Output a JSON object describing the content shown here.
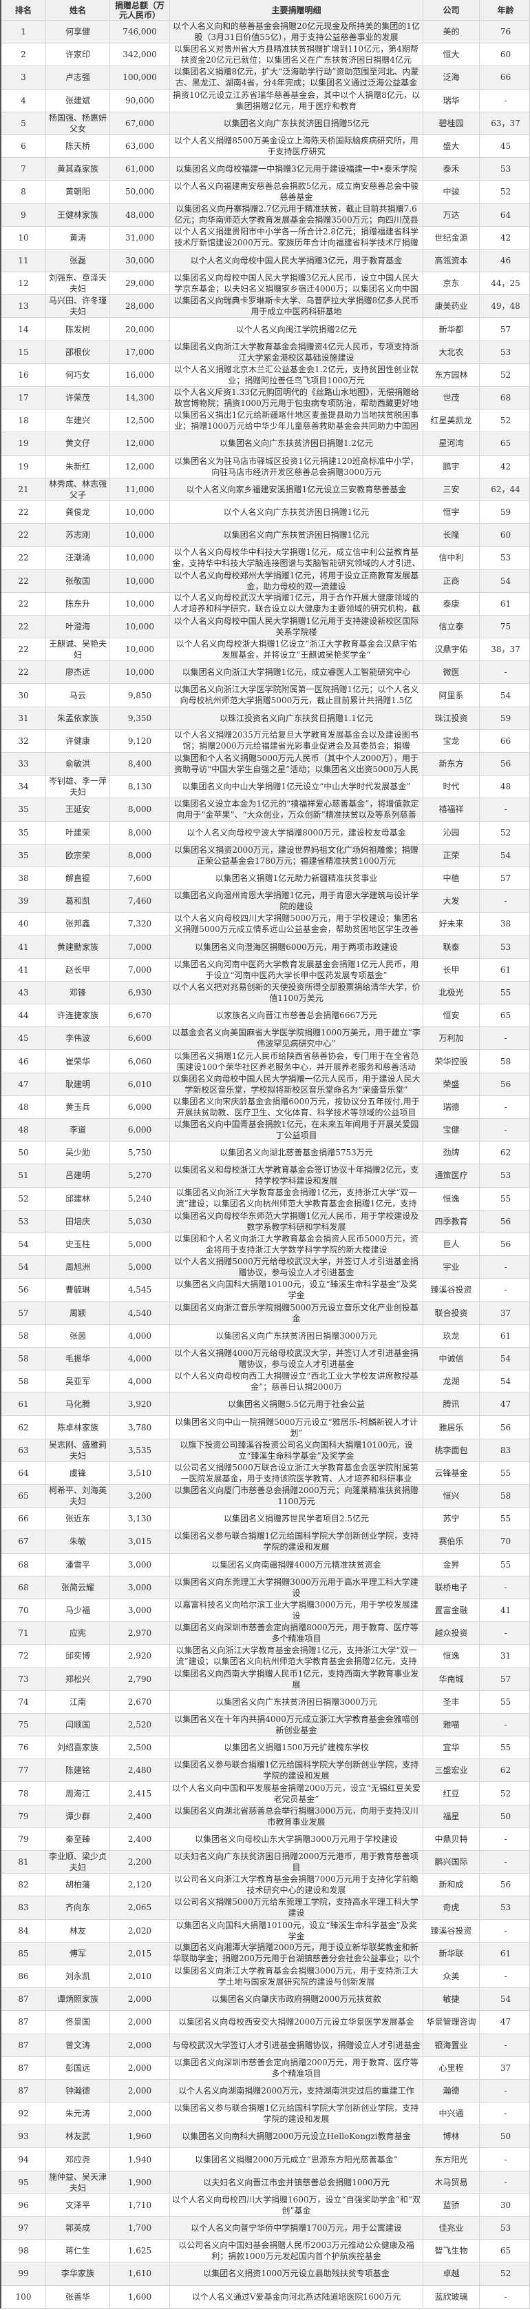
{
  "table": {
    "headers": [
      "排名",
      "姓名",
      "捐赠总额（万元人民币）",
      "主要捐赠明细",
      "公司",
      "年龄"
    ],
    "rows": [
      [
        "1",
        "何享健",
        "746,000",
        "以个人名义向和的慈善基金会捐赠20亿元现金及所持美的集团的1亿股（3月31日价值55亿），用于支持公益慈善事业的发展",
        "美的",
        "76"
      ],
      [
        "2",
        "许家印",
        "342,000",
        "以集团名义对贵州省大方县精准扶贫捐赠扩增到110亿元，第4期帮扶资金20亿元已就位；以集团名义在广东扶贫济困日捐赠4亿元",
        "恒大",
        "60"
      ],
      [
        "3",
        "卢志强",
        "100,000",
        "以集团名义捐赠8亿元，扩大“泛海助学行动”资助范围至河北、内蒙古、黑龙江、湖南4省，分4年完成；以集团名义通过泛海公益基金会再",
        "泛海",
        "66"
      ],
      [
        "4",
        "张建斌",
        "90,000",
        "捐资10亿元设立江苏省瑞华慈善基金会，其中以个人捐赠8亿元，以集团捐赠2亿元，用于医疗和教育",
        "瑞华",
        "-"
      ],
      [
        "5",
        "杨国强、杨惠妍父女",
        "67,000",
        "以集团名义向广东扶贫济困日捐赠5亿元",
        "碧桂园",
        "63，37"
      ],
      [
        "6",
        "陈天桥",
        "63,000",
        "以个人名义捐赠8500万美金设立上海陈天桥国际脑疾病研究所，用于支持医疗研究",
        "盛大",
        "45"
      ],
      [
        "7",
        "黄其森家族",
        "61,000",
        "以集团名义向母校福建一中捐赠3亿元用于建设福建一中•泰禾学院",
        "泰禾",
        "53"
      ],
      [
        "8",
        "黄朝阳",
        "50,000",
        "以个人名义向福建南安慈善总会捐款5亿元，成立南安慈善总会中骏慈善基金",
        "中骏",
        "52"
      ],
      [
        "9",
        "王健林家族",
        "48,000",
        "以集团名义向丹寨捐赠2.7亿元用于精准扶贫，截止目前共捐赠7.6亿元；向华南师范大学教育发展基金会捐赠3500万元；向四川茂县山体垮",
        "万达",
        "64"
      ],
      [
        "10",
        "黄涛",
        "31,000",
        "以个人名义捐建贵阳市中小学各一所合计2.8亿元；捐赠福建省科学技术厅新馆建设2000万元。家族历年合计向福建省科学技术厅捐赠4.4亿",
        "世纪金源",
        "42"
      ],
      [
        "11",
        "张磊",
        "30,000",
        "以个人名义向母校中国人民大学捐赠3亿元，用于教育基金",
        "高瓴资本",
        "46"
      ],
      [
        "12",
        "刘强东、章泽天夫妇",
        "29,000",
        "以集团名义向母校中国人民大学捐赠3亿元人民币，设立中国人民大学京东基金；以夫妇名义捐赠家乡宿迁4000万；以集团名义向中国传媒大",
        "京东",
        "44，25"
      ],
      [
        "13",
        "马兴田、许冬瑾夫妇",
        "28,000",
        "以集团名义向瑞典卡罗琳斯卡大学、乌普萨拉大学捐赠8亿多人民币用于成立中医药科研基地",
        "康美药业",
        "49，48"
      ],
      [
        "14",
        "陈发树",
        "20,000",
        "以个人名义向闽江学院捐赠2亿元",
        "新华都",
        "57"
      ],
      [
        "15",
        "邵根伙",
        "17,000",
        "以集团名义向浙江大学教育基金会捐赠资4亿元人民币，专项支持浙江大学紫金港校区基础设施建设",
        "大北农",
        "53"
      ],
      [
        "16",
        "何巧女",
        "16,000",
        "以个人名义捐赠北京木兰汇公益基金会1.2亿元，支持贫困性创业就业；捐赠阿拉善任鸟飞项目1000万元",
        "东方园林",
        "52"
      ],
      [
        "17",
        "许荣茂",
        "14,300",
        "以个人名义斥资1.33亿元购回明代的《丝路山水地图》，无偿捐赠给故宫博物院；捐资1000万元用于包虫病专项防治，帮助西藏更好地建立包",
        "世茂",
        "68"
      ],
      [
        "18",
        "车建兴",
        "12,500",
        "以集团名义捐出1亿元给新疆喀什地区麦盖提县助力当地扶贫脱困事业；捐赠1000万元给中华少年儿童慈善救助基金会共同助力中国困境儿",
        "红星美凯龙",
        "52"
      ],
      [
        "19",
        "黄文仔",
        "12,000",
        "以集团名义向广东扶贫济困日捐赠1.2亿元",
        "星河湾",
        "65"
      ],
      [
        "19",
        "朱新红",
        "12,000",
        "以集团名义为驻马店市驿城区投资1亿元捐建120班高标准中小学，向驻马店市经济开发区慈善总会捐赠3000万元",
        "鹏宇",
        "42"
      ],
      [
        "21",
        "林秀成、林志强父子",
        "11,000",
        "以个人名义向家乡福建安溪捐赠1亿元设立三安教育慈善基金",
        "三安",
        "62，44"
      ],
      [
        "22",
        "龚俊龙",
        "10,000",
        "以个人名义向广东扶贫济困日捐赠1亿元",
        "恒宇",
        "59"
      ],
      [
        "22",
        "苏志刚",
        "10,000",
        "以集团名义向广东扶贫济困日捐赠1亿元",
        "长隆",
        "60"
      ],
      [
        "22",
        "汪潮涌",
        "10,000",
        "以个人名义向母校华中科技大学捐赠1亿元，成立信中利公益教育基金，支持华中科技大学脑连接图谱与类脑智能研究领域的人才引进、创",
        "信中利",
        "53"
      ],
      [
        "22",
        "张敬国",
        "10,000",
        "以个人名义向母校郑州大学捐赠1亿元，将用于设立正商教育发展基金，助力母校的双一流建设",
        "正商",
        "54"
      ],
      [
        "22",
        "陈东升",
        "10,000",
        "以个人名义向母校武汉大学捐赠1亿元，用于合作开展大健康领域的人才培养和科学研究，联合设立以大健康为主要领域的研究机构，截止目",
        "泰康",
        "61"
      ],
      [
        "22",
        "叶澄海",
        "10,000",
        "以个人名义向母校中国人民大学捐赠1亿元用于支持建设新校区国际关系学院楼",
        "信立泰",
        "75"
      ],
      [
        "22",
        "王麒诚、吴艳夫妇",
        "10,000",
        "以个人名义向母校浙大捐赠1亿设立“浙江大学教育基金会汉鼎宇佑发展基金，并将设立“王麒诚吴艳奖学金“",
        "汉鼎宇佑",
        "38，37"
      ],
      [
        "22",
        "廖杰远",
        "10,000",
        "以集团名义向浙江大学捐赠1亿元，成立睿医人工智能研究中心",
        "微医",
        "-"
      ],
      [
        "30",
        "马云",
        "9,850",
        "以集团名义向浙江大学医学院附属第一医院捐赠1亿元；以个人名义向母校杭州师范大学捐赠5000万元，截止目前累计共捐赠1.5亿元；以个",
        "阿里系",
        "54"
      ],
      [
        "31",
        "朱孟依家族",
        "9,350",
        "以珠江投资名义向广东扶贫日捐赠1.1亿元",
        "珠江投资",
        "59"
      ],
      [
        "32",
        "许健康",
        "9,120",
        "以个人名义捐赠2035万元给复旦大学教育发展基金会以及建设图书馆；捐赠2000万元给福建省光彩事业促进会及其委员会；捐赠1100万给泉州",
        "宝龙",
        "66"
      ],
      [
        "33",
        "俞敏洪",
        "8,400",
        "以集团和个人名义捐赠5000万元人民币（其中个人2000万），用于资助寻访“中国大学生自强之星”活动；以集团名义出资5000万人民币帮助",
        "新东方",
        "56"
      ],
      [
        "34",
        "岑钊雄、李一萍夫妇",
        "8,130",
        "以集团名义向中山大学捐赠1亿元设立“中山大学时代发展基金”",
        "时代",
        "48"
      ],
      [
        "35",
        "王延安",
        "8,000",
        "以集团名义设立本金为1亿元的“禧福祥爱心慈善基金”，将增值款定向用于“金苹果”、“大众创业，万众创新”精准扶贫以及等系列慈善",
        "禧福祥",
        "-"
      ],
      [
        "35",
        "叶建荣",
        "8,000",
        "以个人名义向母校宁波大学捐赠8000万元，建设校友母基金",
        "沁园",
        "52"
      ],
      [
        "35",
        "欧宗荣",
        "8,000",
        "以集团名义捐资2000万元，建设世界妈祖文化广场妈祖雕像；捐赠正荣公益基金会1780万元；福建省精准扶贫1000万元",
        "正荣",
        "54"
      ],
      [
        "38",
        "解直锟",
        "7,600",
        "以集团名义捐赠1亿元助力新疆精准扶贫事业",
        "中植",
        "57"
      ],
      [
        "39",
        "葛和凯",
        "7,460",
        "以集团名义向温州肯恩大学捐赠1亿元，用于肯恩大学建筑与设计学院的建设",
        "大发",
        "-"
      ],
      [
        "40",
        "张邦鑫",
        "7,320",
        "以个人名义向母校四川大学捐赠5000万元，用于学校建设；集团名义捐赠5000万元成立情系远山公益基金会，帮助贫困地区学生改善学习环",
        "好未来",
        "38"
      ],
      [
        "41",
        "黄建勳家族",
        "7,000",
        "以集团名义向澄海区捐赠6000万元，用于两项市政建设",
        "联泰",
        "53"
      ],
      [
        "41",
        "赵长甲",
        "7,000",
        "以集团名义向河南中医药大学教育发展基金会捐赠1亿元人民币，用于设立“河南中医药大学长甲中医药发展专项基金”",
        "长甲",
        "61"
      ],
      [
        "43",
        "邓锋",
        "6,930",
        "以个人名义把对兆易创新的天使投资所得全部股票捐给清华大学，价值1100万美元",
        "北极光",
        "55"
      ],
      [
        "44",
        "许连捷家族",
        "6,670",
        "以家族名义向晋江市慈善总会捐赠6667万元",
        "恒安",
        "65"
      ],
      [
        "45",
        "李伟波",
        "6,600",
        "以基金会名义向美国麻省大学医学院捐赠1000万美元，用于建立“李伟波罕见病研究中心”",
        "万利加",
        "-"
      ],
      [
        "46",
        "崔荣华",
        "6,060",
        "以集团名义捐赠1亿元人民币给陕西省慈善协会，专门用于在全省范围建设100个荣华社区养老服务中心，并开展养老服务和慈善活动",
        "荣华控股",
        "58"
      ],
      [
        "47",
        "耿建明",
        "6,010",
        "以集团名义向母校中国人民大学捐赠一亿元人民币，用于建设人民大学新校区音乐堂，学校拟将新校区音乐堂命名为“荣盛音乐堂”",
        "荣盛",
        "56"
      ],
      [
        "48",
        "黄玉兵",
        "6,000",
        "以集团名义向宋庆龄基金会捐赠6000万元，按协议分五年拨付,用于开展扶贫助教、医疗卫生、文化体育、科学技术等领域的公益项目",
        "瑞德",
        "-"
      ],
      [
        "48",
        "李道",
        "6,000",
        "以集团名义向中国青基会捐款1亿元，在未来五年间用于开展关爱园丁公益项目",
        "宝健",
        "-"
      ],
      [
        "50",
        "吴少勋",
        "5,750",
        "以集团名义向湖北慈善基金捐赠5753万元",
        "劲牌",
        "62"
      ],
      [
        "51",
        "吕建明",
        "5,270",
        "以集团名义和母校浙江大学教育基金会签订协议十年捐赠2亿元，支持学校学科建设和发展",
        "通策医疗",
        "53"
      ],
      [
        "52",
        "邱建林",
        "5,240",
        "以集团名义向浙江大学教育基金会捐赠1亿元，支持浙江大学“双一流”建设；以集团名义向杭州师范大学教育基金会捐赠1亿元，支持该校",
        "恒逸",
        "55"
      ],
      [
        "53",
        "田培庆",
        "5,030",
        "以集团名义向母校华东师范大学捐赠1亿元人民币，用于学校建设及数学系教学科研和学科发展",
        "四季教育",
        "56"
      ],
      [
        "54",
        "史玉柱",
        "5,000",
        "以集团和个人名义向浙江大学教育基金会捐资人民币5000万元，资金将用于支持浙江大学数学科学学院的新大楼建设",
        "巨人",
        "56"
      ],
      [
        "54",
        "周旭洲",
        "5,000",
        "以个人名义捐赠5000万元给母校武汉大学，并签订人才引进基金捐赠协议，参与设立人才引进基金",
        "宇业",
        "-"
      ],
      [
        "56",
        "曹毓琳",
        "4,545",
        "以集团名义向国科大捐赠10100元，设立“臻溪生命科学基金”及奖学金",
        "臻溪谷投资",
        "-"
      ],
      [
        "57",
        "周颖",
        "4,540",
        "以集团名义向浙江音乐学院捐赠5000万元设立音乐文化产业创投基金",
        "联合投资",
        "37"
      ],
      [
        "58",
        "张茵",
        "4,000",
        "以集团名义向广东扶贫济困日捐赠3000万元",
        "玖龙",
        "61"
      ],
      [
        "58",
        "毛振华",
        "4,000",
        "以个人名义捐赠4000万元给母校武汉大学，并签订人才引进基金捐赠协议，参与设立人才引进基金",
        "中诚信",
        "54"
      ],
      [
        "58",
        "吴亚军",
        "4,000",
        "以个人名义向母校向西工大捐赠设立“西北工业大学校友讲席教授基金”；慈善日认捐2000万",
        "龙湖",
        "54"
      ],
      [
        "61",
        "马化腾",
        "3,920",
        "以集团名义捐赠5.5亿元用于社会公益",
        "腾讯",
        "47"
      ],
      [
        "62",
        "陈卓林家族",
        "3,780",
        "以集团名义向中山一院捐赠5000万元设立“雅居乐-柯麟新锐人才计划”",
        "雅居乐",
        "56"
      ],
      [
        "63",
        "吴志刚、盛雅莉夫妇",
        "3,535",
        "以旗下投资公司臻溪谷投资公司名义向国科大捐赠10100元，设立“臻溪生命科学基金”及奖学金",
        "桃李面包",
        "83"
      ],
      [
        "64",
        "虞锋",
        "3,510",
        "以公司名义捐赠5000万联合设立浙江大学教育基金会医学院附属第一医院发展基金，用于支持该院医学教育、人才培养和科研事业",
        "云锋基金",
        "55"
      ],
      [
        "65",
        "柯希平、刘海英夫妇",
        "3,200",
        "以集团名义向厦门市慈善总会捐赠2000万元；向蓬莱精准扶贫捐赠1100万元",
        "恒兴",
        "58"
      ],
      [
        "66",
        "张近东",
        "3,130",
        "以集团名义捐赠苏世民学者项目2.5亿元",
        "苏宁",
        "55"
      ],
      [
        "67",
        "朱敏",
        "3,015",
        "以集团名义参与联合捐赠1亿元给国科学院大学创新创业学院，支持学院的建设和发展",
        "赛伯乐",
        "70"
      ],
      [
        "68",
        "潘雪平",
        "3,000",
        "以集团名义向南疆捐赠4000万元精准扶贫资金",
        "金昇",
        "55"
      ],
      [
        "68",
        "张简云耀",
        "3,000",
        "以集团名义向东莞理工大学捐赠3000万元用于高水平理工科大学建设",
        "联桥电子",
        "-"
      ],
      [
        "70",
        "马少福",
        "3,000",
        "以嘉富科技名义向哈尔滨工业大学捐赠3000万元，用于学校发展建设",
        "置富金融",
        "41"
      ],
      [
        "71",
        "应宪",
        "2,970",
        "以集团名义向深圳市慈善会定向捐赠8000万元，用于教育、医疗等多个精准项目",
        "越众投资",
        "-"
      ],
      [
        "72",
        "邱奕博",
        "2,920",
        "以集团名义向浙江大学教育基金会捐赠1亿元，支持浙江大学“双一流”建设；以集团名义向杭州师范大学教育基金会捐赠2亿元，支持该校",
        "恒逸",
        "31"
      ],
      [
        "73",
        "郑松兴",
        "2,790",
        "以集团名义向西南大学捐赠人民币1亿元，支持西南大学教育事业发展",
        "华南城",
        "57"
      ],
      [
        "74",
        "江南",
        "2,670",
        "以集团名义向广东扶贫济困日捐赠3000万元",
        "圣丰",
        "55"
      ],
      [
        "75",
        "闫顺国",
        "2,520",
        "以集团名义在十年内共捐4000万元成立浙江大学教育基金会雅喵创新创业基金",
        "雅喵",
        "-"
      ],
      [
        "76",
        "刘绍喜家族",
        "2,500",
        "以集团名义捐赠1500万元扩建槐东学校",
        "宜华",
        "55"
      ],
      [
        "77",
        "陈建铭",
        "2,480",
        "以集团名义参与联合捐赠1亿元给国科学院大学创新创业学院，支持学院的建设和发展",
        "三盛宏业",
        "62"
      ],
      [
        "78",
        "周海江",
        "2,415",
        "以个人名义向中国和平发展基金捐赠2000万元，设立“无锡红豆关爱老党员基金”",
        "红豆",
        "52"
      ],
      [
        "79",
        "谭少群",
        "2,400",
        "以集团名义向湖北省慈善总会举行捐赠3000万元，向用于支持汉川市教育事业发展",
        "福星",
        "50"
      ],
      [
        "79",
        "秦至臻",
        "2,400",
        "以集团名义向母校山东大学捐赠3000万元用于学校建设",
        "中鼎贝特",
        "-"
      ],
      [
        "81",
        "李业顺、梁少贞夫妇",
        "2,200",
        "以夫妇名义向广东扶贫济困日捐赠2000万元港币，用于教育慈善项目",
        "鹏兴国际",
        "-"
      ],
      [
        "82",
        "胡柏藩",
        "2,120",
        "以公司名义向浙江大学教育基金会捐赠7000万元用于支持化学前瞻技术研究中心的建设和发展",
        "新和成",
        "56"
      ],
      [
        "83",
        "齐向东",
        "2,065",
        "以公司名义捐赠5000万元给东莞理工学院，支持高水平理工科大学建设",
        "奇虎",
        "53"
      ],
      [
        "84",
        "林友",
        "2,020",
        "以集团名义向国科大捐赠10100元，设立“臻溪生命科学基金”及奖学金",
        "臻溪谷投资",
        "-"
      ],
      [
        "85",
        "傅军",
        "2,015",
        "以集团名义向湘潭大学捐赠2000万元，用于设立新华联奖教金和新华联助学金；捐赠200万元用于台湖镇慈善分会社会公益事业；以个人和集",
        "新华联",
        "61"
      ],
      [
        "86",
        "刘永凯",
        "2,010",
        "以集团名义向浙江大学教育基金会捐赠3000万元，用于支持浙江大学土地与国家发展研究院的建设与创新发展",
        "众美",
        "-"
      ],
      [
        "87",
        "谭炳照家族",
        "2,000",
        "以集团名义向肇庆市政府捐赠2000万元扶贫款",
        "敏捷",
        "54"
      ],
      [
        "87",
        "佟景国",
        "2,000",
        "以集团名义向母校西安交大捐赠2000万元设立华景医学发展基金",
        "华景管理咨询",
        "47"
      ],
      [
        "87",
        "曾文涛",
        "2,000",
        "与母校武汉大学签订人才引进基金捐赠协议，捐赠设立人才引进基金",
        "银海置业",
        "-"
      ],
      [
        "87",
        "彭国远",
        "2,000",
        "以集团名义向深圳市慈善会定向捐赠2000万元，用于教育、医疗等多个精准项目",
        "心里程",
        "37"
      ],
      [
        "87",
        "钟瀚德",
        "2,000",
        "以个人名义向湖南捐赠2000万元，支持湖南洪灾过后的重建工作",
        "瀚德",
        "-"
      ],
      [
        "92",
        "朱元涛",
        "2,000",
        "以集团名义参与联合捐赠1亿元给国科学院大学创新创业学院，支持学院的建设和发展",
        "中兴通",
        "-"
      ],
      [
        "93",
        "林友武",
        "1,960",
        "以集团名义向南科大捐赠2000万元设立HelloKongzi教育基金",
        "博林",
        "50"
      ],
      [
        "94",
        "邓应尧",
        "1,940",
        "以集团名义捐赠2000万元成立“思源东方阳光慈善基金”",
        "东方阳光",
        "-"
      ],
      [
        "95",
        "施仲益、吴天津夫妇",
        "1,900",
        "以夫妇名义向晋江市金井镇慈善总会捐赠1000万元",
        "木马贸易",
        "-"
      ],
      [
        "96",
        "文泽平",
        "1,710",
        "以个人名义向母校四川大学捐赠1600万，设立“自强奖助学金”和“双创”基金",
        "蓝骄",
        "30"
      ],
      [
        "97",
        "郭英成",
        "1,700",
        "以个人名义向普宁华侨中学捐赠1700万元，用于公寓建设",
        "佳兆业",
        "53"
      ],
      [
        "98",
        "蒋仁生",
        "1,625",
        "以公司名义向中国妇基会捐赠人民币2003万元推动公众健康及福利；捐款1000万元发起国内首个护航疾控基金",
        "智飞生物",
        "65"
      ],
      [
        "99",
        "李华家族",
        "1,610",
        "以集团名义捐资1000万元设立县助残扶贫专项基金",
        "卓越",
        "52"
      ],
      [
        "100",
        "张善华",
        "1,600",
        "以个人名义通过V爱基金向河北燕达陆道培医院1600万元",
        "蓝欣玻璃",
        "-"
      ]
    ]
  }
}
